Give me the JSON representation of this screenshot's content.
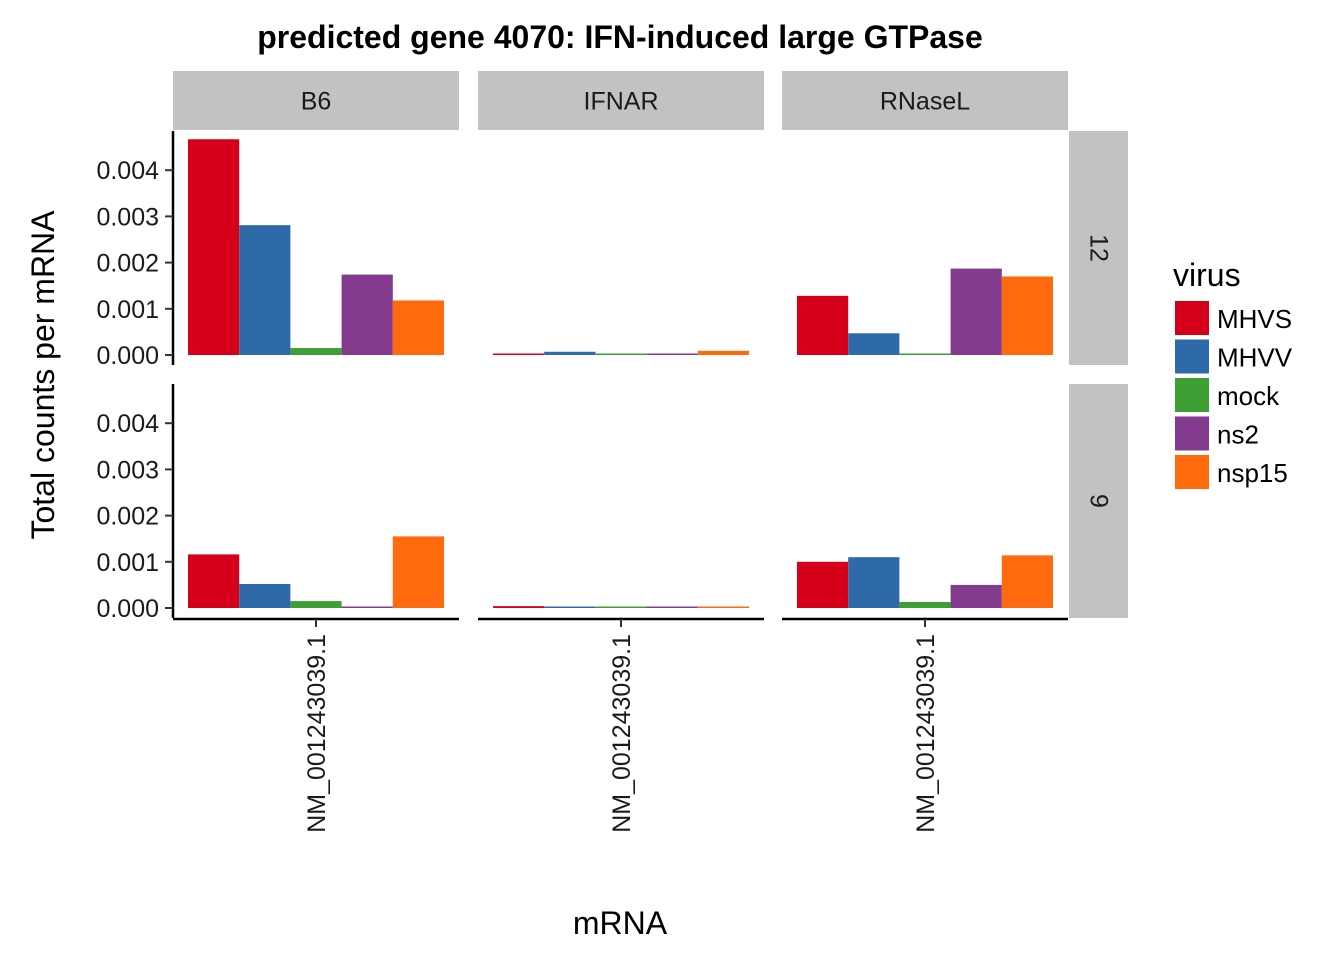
{
  "chart_data": {
    "type": "bar",
    "title": "predicted gene 4070: IFN-induced large GTPase",
    "xlabel": "mRNA",
    "ylabel": "Total counts per mRNA",
    "ylim": [
      0,
      0.0048
    ],
    "yticks": [
      "0.000",
      "0.001",
      "0.002",
      "0.003",
      "0.004"
    ],
    "ytick_values": [
      0,
      0.001,
      0.002,
      0.003,
      0.004
    ],
    "column_facets": [
      "B6",
      "IFNAR",
      "RNaseL"
    ],
    "row_facets": [
      "12",
      "9"
    ],
    "category": "NM_001243039.1",
    "legend": {
      "title": "virus",
      "position": "right",
      "items": [
        {
          "name": "MHVS",
          "color": "#d7001a"
        },
        {
          "name": "MHVV",
          "color": "#2f6aa8"
        },
        {
          "name": "mock",
          "color": "#3e9f37"
        },
        {
          "name": "ns2",
          "color": "#843a8e"
        },
        {
          "name": "nsp15",
          "color": "#ff6a0e"
        }
      ]
    },
    "values": {
      "12": {
        "B6": [
          0.00467,
          0.00281,
          0.00015,
          0.00174,
          0.00118
        ],
        "IFNAR": [
          2e-05,
          7e-05,
          2e-05,
          2e-05,
          9e-05
        ],
        "RNaseL": [
          0.00128,
          0.00047,
          2e-05,
          0.00187,
          0.0017
        ]
      },
      "9": {
        "B6": [
          0.00116,
          0.00052,
          0.00015,
          2e-05,
          0.00155
        ],
        "IFNAR": [
          4e-05,
          3e-05,
          3e-05,
          2e-05,
          2e-05
        ],
        "RNaseL": [
          0.001,
          0.0011,
          0.00013,
          0.0005,
          0.00114
        ]
      }
    }
  }
}
